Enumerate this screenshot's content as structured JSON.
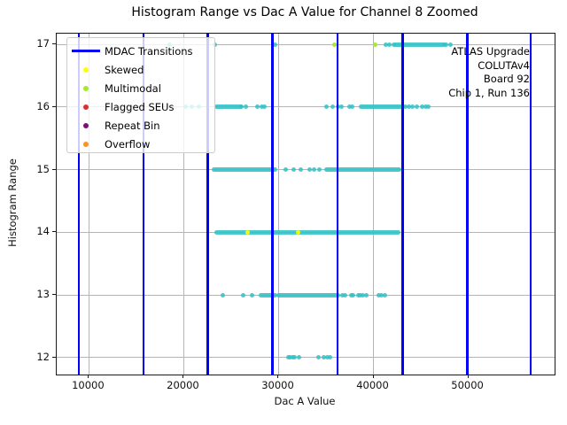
{
  "chart_data": {
    "type": "scatter",
    "title": "Histogram Range vs Dac A Value for Channel 8 Zoomed",
    "xlabel": "Dac A Value",
    "ylabel": "Histogram Range",
    "xlim": [
      6600,
      59100
    ],
    "ylim": [
      11.73,
      17.17
    ],
    "xticks": [
      10000,
      20000,
      30000,
      40000,
      50000
    ],
    "yticks": [
      12,
      13,
      14,
      15,
      16,
      17
    ],
    "grid": true,
    "annotation_lines": [
      "ATLAS Upgrade",
      "COLUTAv4",
      "Board 92",
      "Chip 1, Run 136"
    ],
    "mdac_transitions": [
      8945,
      15760,
      22535,
      29370,
      36215,
      43060,
      49910,
      56600
    ],
    "scatter_color": "#31c1c6",
    "mdac_color": "#0202f2",
    "rows": [
      {
        "range": 17,
        "points": [
          18470,
          23320,
          29670,
          41350,
          41720,
          42100,
          47450,
          47700,
          48160
        ],
        "bands": [
          [
            42350,
            47250
          ]
        ]
      },
      {
        "range": 16,
        "points": [
          20150,
          20800,
          21550,
          26100,
          26560,
          27800,
          28270,
          28550,
          35060,
          35680,
          36220,
          36680,
          37460,
          37770,
          43400,
          43775,
          44150,
          44615,
          45175,
          45550,
          45830
        ],
        "bands": [
          [
            23420,
            25940
          ],
          [
            38730,
            43060
          ]
        ]
      },
      {
        "range": 15,
        "points": [
          30770,
          31545,
          32320,
          33255,
          33720,
          34340
        ],
        "bands": [
          [
            23140,
            29670
          ],
          [
            35090,
            42750
          ]
        ]
      },
      {
        "range": 14,
        "points": [],
        "bands": [
          [
            23445,
            42595
          ]
        ]
      },
      {
        "range": 13,
        "points": [
          24070,
          26240,
          27170,
          36700,
          36980,
          37630,
          37820,
          38380,
          38570,
          38850,
          39220,
          40570,
          40880,
          41190
        ],
        "bands": [
          [
            28100,
            29670
          ],
          [
            30000,
            36215
          ]
        ]
      },
      {
        "range": 12,
        "points": [
          31010,
          31235,
          31450,
          31700,
          32170,
          34190,
          34810,
          35120,
          35430
        ],
        "bands": []
      }
    ],
    "flags": {
      "skewed": {
        "color": "#ffff00",
        "points": [
          {
            "x": 26715,
            "y": 14
          },
          {
            "x": 32010,
            "y": 14
          }
        ]
      },
      "multimodal": {
        "color": "#a8e82a",
        "points": [
          {
            "x": 35930,
            "y": 17
          },
          {
            "x": 40200,
            "y": 17
          }
        ]
      },
      "flagged_seus": {
        "color": "#dc2f2f",
        "points": []
      },
      "repeat_bin": {
        "color": "#7d0d7d",
        "points": []
      },
      "overflow": {
        "color": "#ff9021",
        "points": []
      }
    },
    "legend": {
      "items": [
        {
          "label": "MDAC Transitions",
          "marker": "line",
          "color": "#0202f2"
        },
        {
          "label": "Skewed",
          "marker": "dot",
          "color": "#ffff00"
        },
        {
          "label": "Multimodal",
          "marker": "dot",
          "color": "#a8e82a"
        },
        {
          "label": "Flagged SEUs",
          "marker": "dot",
          "color": "#dc2f2f"
        },
        {
          "label": "Repeat Bin",
          "marker": "dot",
          "color": "#7d0d7d"
        },
        {
          "label": "Overflow",
          "marker": "dot",
          "color": "#ff9021"
        }
      ]
    }
  }
}
